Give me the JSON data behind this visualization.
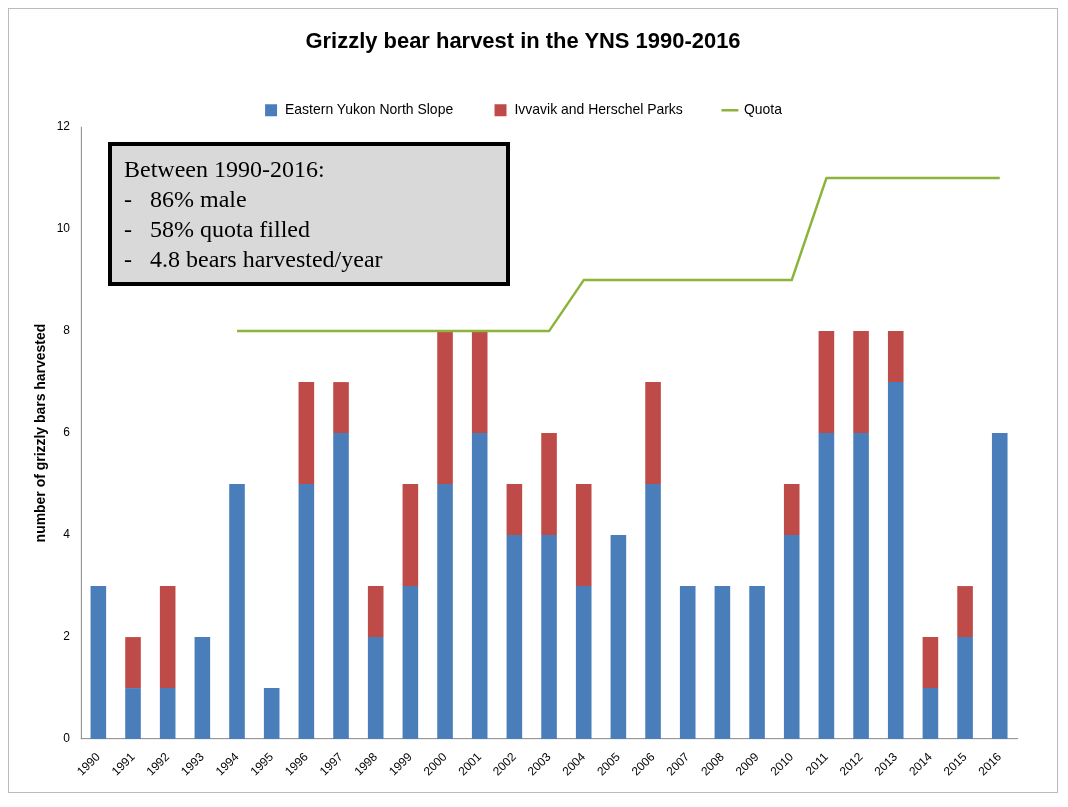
{
  "chart_data": {
    "type": "bar",
    "title": "Grizzly bear harvest in the YNS 1990-2016",
    "ylabel": "number of grizzly bars harvested",
    "categories": [
      "1990",
      "1991",
      "1992",
      "1993",
      "1994",
      "1995",
      "1996",
      "1997",
      "1998",
      "1999",
      "2000",
      "2001",
      "2002",
      "2003",
      "2004",
      "2005",
      "2006",
      "2007",
      "2008",
      "2009",
      "2010",
      "2011",
      "2012",
      "2013",
      "2014",
      "2015",
      "2016"
    ],
    "stacked": true,
    "ylim": [
      0,
      12
    ],
    "yticks": [
      0,
      2,
      4,
      6,
      8,
      10,
      12
    ],
    "grid": false,
    "legend": "top",
    "marker": "none",
    "series": [
      {
        "name": "Eastern Yukon North Slope",
        "color": "#4a7ebb",
        "values": [
          3,
          1,
          1,
          2,
          5,
          1,
          5,
          6,
          2,
          3,
          5,
          6,
          4,
          4,
          3,
          4,
          5,
          3,
          3,
          3,
          4,
          6,
          6,
          7,
          1,
          2,
          6
        ]
      },
      {
        "name": "Ivvavik and Herschel Parks",
        "color": "#be4b48",
        "values": [
          null,
          1,
          2,
          null,
          null,
          null,
          2,
          1,
          1,
          2,
          3,
          2,
          1,
          2,
          2,
          null,
          2,
          null,
          null,
          null,
          1,
          2,
          2,
          1,
          1,
          1,
          null
        ]
      },
      {
        "name": "Quota",
        "type": "line",
        "color": "#8db33b",
        "values": [
          null,
          null,
          null,
          null,
          8,
          8,
          8,
          8,
          8,
          8,
          8,
          8,
          8,
          8,
          9,
          9,
          9,
          9,
          9,
          9,
          9,
          11,
          11,
          11,
          11,
          11,
          11
        ]
      }
    ],
    "annotations": [
      "Between 1990-2016:",
      "-   86% male",
      "-   58% quota filled",
      "-   4.8 bears harvested/year"
    ]
  }
}
